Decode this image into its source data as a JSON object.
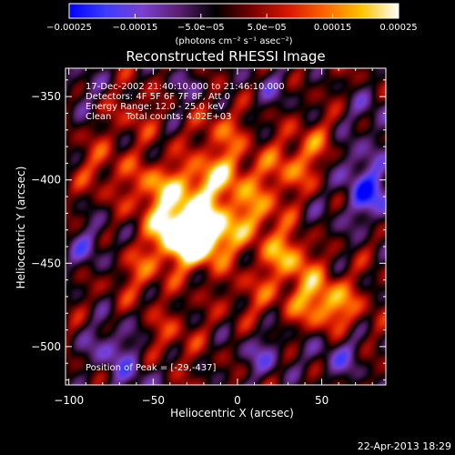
{
  "chart_data": {
    "type": "heatmap",
    "title": "Reconstructed RHESSI Image",
    "xlabel": "Heliocentric X (arcsec)",
    "ylabel": "Heliocentric Y (arcsec)",
    "xlim": [
      -102,
      88
    ],
    "ylim": [
      -523,
      -333
    ],
    "x_ticks": [
      -100,
      -50,
      0,
      50
    ],
    "y_ticks": [
      -350,
      -400,
      -450,
      -500
    ],
    "x_tick_labels": [
      "−100",
      "−50",
      "0",
      "50"
    ],
    "y_tick_labels": [
      "−350",
      "−400",
      "−450",
      "−500"
    ],
    "colorbar": {
      "range": [
        -0.00025,
        0.00025
      ],
      "ticks": [
        -0.00025,
        -0.00015,
        -5e-05,
        5e-05,
        0.00015,
        0.00025
      ],
      "tick_labels": [
        "−0.00025",
        "−0.00015",
        "−5.0e−05",
        "5.0e−05",
        "0.00015",
        "0.00025"
      ],
      "unit_label": "(photons cm⁻² s⁻¹ asec⁻²)",
      "colors": [
        "#0000ff",
        "#3c3cff",
        "#7a40d0",
        "#5a1f6e",
        "#000000",
        "#7a0000",
        "#d81800",
        "#ff6600",
        "#ffc400",
        "#ffffff"
      ]
    },
    "peak": {
      "x": -29,
      "y": -437
    },
    "sources": [
      {
        "x": -29,
        "y": -437,
        "value": 0.00025
      },
      {
        "x": -15,
        "y": -432,
        "value": 0.00022
      },
      {
        "x": -38,
        "y": -427,
        "value": 0.0002
      },
      {
        "x": -48,
        "y": -405,
        "value": 0.00015
      },
      {
        "x": -22,
        "y": -405,
        "value": 0.00016
      },
      {
        "x": -5,
        "y": -395,
        "value": 0.00013
      },
      {
        "x": 10,
        "y": -420,
        "value": 0.00014
      },
      {
        "x": 30,
        "y": -445,
        "value": 0.00017
      },
      {
        "x": 45,
        "y": -470,
        "value": 0.00015
      },
      {
        "x": 60,
        "y": -478,
        "value": 0.00012
      },
      {
        "x": 28,
        "y": -395,
        "value": 0.00011
      },
      {
        "x": 45,
        "y": -380,
        "value": 0.0001
      },
      {
        "x": -10,
        "y": -370,
        "value": 9e-05
      },
      {
        "x": -80,
        "y": -392,
        "value": 8e-05
      },
      {
        "x": -60,
        "y": -360,
        "value": 6e-05
      },
      {
        "x": -58,
        "y": -455,
        "value": 9e-05
      },
      {
        "x": -40,
        "y": -495,
        "value": 7e-05
      },
      {
        "x": 10,
        "y": -470,
        "value": 7e-05
      },
      {
        "x": -88,
        "y": -440,
        "value": -0.0001
      },
      {
        "x": 80,
        "y": -410,
        "value": -0.00018
      },
      {
        "x": 70,
        "y": -390,
        "value": -0.0001
      },
      {
        "x": -75,
        "y": -500,
        "value": -0.00012
      },
      {
        "x": 15,
        "y": -505,
        "value": -0.0001
      },
      {
        "x": 60,
        "y": -505,
        "value": -0.00011
      },
      {
        "x": -30,
        "y": -345,
        "value": -6e-05
      },
      {
        "x": 20,
        "y": -345,
        "value": -7e-05
      },
      {
        "x": 80,
        "y": -360,
        "value": -8e-05
      },
      {
        "x": -95,
        "y": -345,
        "value": -7e-05
      },
      {
        "x": 50,
        "y": -430,
        "value": -5e-05
      },
      {
        "x": -60,
        "y": -520,
        "value": -8e-05
      }
    ],
    "annotations": [
      "17-Dec-2002 21:40:10.000 to 21:46:10.000",
      "Detectors: 4F 5F 6F 7F 8F, Att 0",
      "Energy Range: 12.0 - 25.0 keV",
      "Clean     Total counts: 4.02E+03"
    ],
    "peak_label": "Position of Peak = [-29,-437]",
    "timestamp": "22-Apr-2013 18:29"
  }
}
